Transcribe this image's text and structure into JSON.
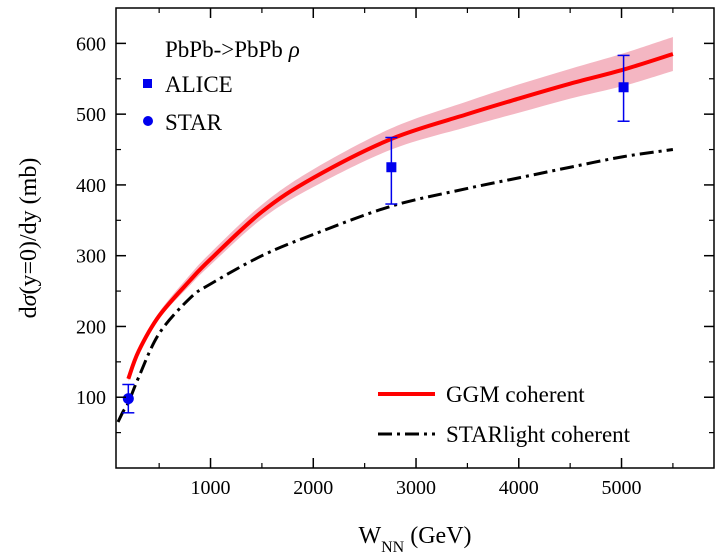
{
  "chart_data": {
    "type": "line",
    "title": "",
    "xlabel": "W",
    "xlabel_sub": "NN",
    "xlabel_unit": "(GeV)",
    "ylabel_pre": "d",
    "ylabel_sym": "σ",
    "ylabel_post": "(y=0)/dy (mb)",
    "xlim": [
      80,
      5900
    ],
    "ylim": [
      0,
      650
    ],
    "xticks": [
      1000,
      2000,
      3000,
      4000,
      5000
    ],
    "yticks": [
      100,
      200,
      300,
      400,
      500,
      600
    ],
    "grid": false,
    "legend_header": "PbPb->PbPb",
    "legend_header_sym": "ρ",
    "legend_position": "top-left and bottom-right",
    "series": [
      {
        "name": "GGM coherent",
        "style": "line",
        "color": "#ff0000",
        "band_color": "#f4b6c2",
        "x": [
          200,
          300,
          500,
          800,
          1000,
          1500,
          2000,
          2760,
          3500,
          4000,
          4500,
          5020,
          5500
        ],
        "values": [
          126,
          165,
          215,
          265,
          295,
          362,
          410,
          465,
          500,
          522,
          543,
          563,
          585
        ],
        "band_lower": [
          122,
          161,
          211,
          258,
          287,
          352,
          397,
          450,
          482,
          502,
          522,
          540,
          561
        ],
        "band_upper": [
          130,
          169,
          220,
          273,
          304,
          372,
          422,
          480,
          518,
          542,
          564,
          586,
          609
        ]
      },
      {
        "name": "STARlight coherent",
        "style": "dashdot",
        "color": "#000000",
        "x": [
          100,
          150,
          200,
          300,
          500,
          800,
          1000,
          1500,
          2000,
          2760,
          3500,
          4000,
          4500,
          5020,
          5500
        ],
        "values": [
          65,
          80,
          92,
          128,
          190,
          240,
          260,
          300,
          330,
          370,
          395,
          410,
          425,
          440,
          450
        ]
      },
      {
        "name": "ALICE",
        "style": "marker-square",
        "color": "#0000ee",
        "x": [
          2760,
          5020
        ],
        "values": [
          425,
          538
        ],
        "err_low": [
          52,
          48
        ],
        "err_high": [
          42,
          45
        ]
      },
      {
        "name": "STAR",
        "style": "marker-circle",
        "color": "#0000ee",
        "x": [
          200
        ],
        "values": [
          98
        ],
        "err_low": [
          20
        ],
        "err_high": [
          20
        ]
      }
    ]
  }
}
